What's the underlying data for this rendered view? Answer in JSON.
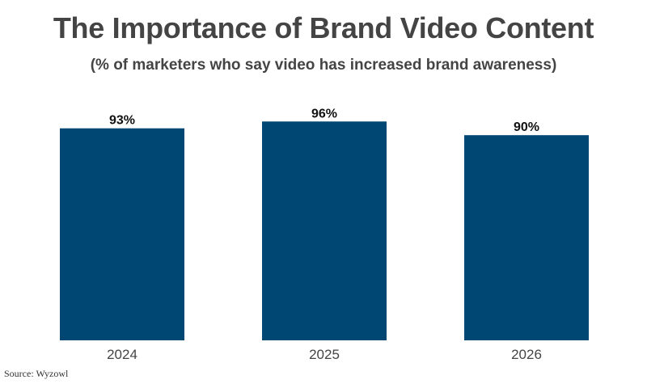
{
  "title": "The Importance of Brand Video Content",
  "subtitle": "(% of marketers who say video has increased brand awareness)",
  "source": "Source: Wyzowl",
  "colors": {
    "bar": "#004873",
    "text": "#444444",
    "label": "#111111"
  },
  "chart_data": {
    "type": "bar",
    "categories": [
      "2024",
      "2025",
      "2026"
    ],
    "values": [
      93,
      96,
      90
    ],
    "value_labels": [
      "93%",
      "96%",
      "90%"
    ],
    "title": "The Importance of Brand Video Content",
    "subtitle": "(% of marketers who say video has increased brand awareness)",
    "xlabel": "",
    "ylabel": "",
    "ylim": [
      0,
      100
    ],
    "grid": false,
    "legend": "none"
  }
}
